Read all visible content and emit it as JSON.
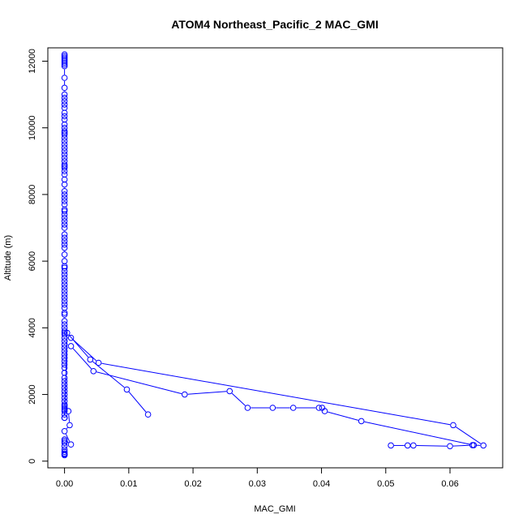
{
  "chart_data": {
    "type": "line",
    "title": "ATOM4 Northeast_Pacific_2 MAC_GMI",
    "xlabel": "MAC_GMI",
    "ylabel": "Altitude (m)",
    "xlim": [
      -0.0026,
      0.0682
    ],
    "ylim": [
      -200,
      12400
    ],
    "x_ticks": [
      0.0,
      0.01,
      0.02,
      0.03,
      0.04,
      0.05,
      0.06
    ],
    "x_tick_labels": [
      "0.00",
      "0.01",
      "0.02",
      "0.03",
      "0.04",
      "0.05",
      "0.06"
    ],
    "y_ticks": [
      0,
      2000,
      4000,
      6000,
      8000,
      10000,
      12000
    ],
    "y_tick_labels": [
      "0",
      "2000",
      "4000",
      "6000",
      "8000",
      "10000",
      "12000"
    ],
    "grid": false,
    "legend": "none",
    "color": "#0000ff",
    "marker": "open-circle",
    "series": [
      {
        "x": [
          0.0,
          0.0,
          0.0,
          0.0,
          0.0,
          0.0,
          0.0,
          0.0,
          0.0,
          0.0,
          0.0,
          0.0,
          0.0,
          0.0,
          0.0,
          0.0,
          0.0,
          0.0,
          0.0,
          0.0,
          0.0,
          0.0,
          0.0,
          0.0,
          0.0,
          0.0,
          0.0,
          0.0,
          0.0,
          0.0,
          0.0,
          0.0,
          0.0,
          0.0,
          0.0,
          0.0,
          0.0,
          0.0,
          0.0,
          0.0,
          0.0,
          0.0,
          0.0,
          0.0,
          0.0,
          0.0,
          0.0,
          0.0,
          0.0,
          0.0,
          0.0,
          0.0,
          0.0,
          0.0,
          0.0,
          0.0,
          0.0,
          0.0,
          0.0,
          0.0,
          0.0,
          0.0,
          0.0,
          0.0,
          0.0,
          0.0,
          0.0,
          0.0,
          0.0,
          0.0,
          0.0,
          0.0,
          0.0,
          0.0,
          0.0,
          0.0,
          0.0,
          0.0,
          0.0,
          0.0,
          0.0,
          0.0,
          0.0,
          0.0,
          0.0,
          0.0,
          0.0,
          0.0,
          0.0,
          0.0,
          0.0,
          0.0,
          0.0,
          0.0,
          0.0,
          0.0,
          0.0,
          0.0,
          0.0,
          0.0,
          0.0,
          0.0,
          0.0
        ],
        "y": [
          12200,
          12150,
          12100,
          12050,
          12000,
          11950,
          11900,
          11850,
          11500,
          11200,
          11000,
          10900,
          10800,
          10700,
          10600,
          10450,
          10350,
          10250,
          10100,
          10000,
          9900,
          9850,
          9800,
          9700,
          9600,
          9500,
          9400,
          9300,
          9200,
          9100,
          9000,
          8900,
          8850,
          8800,
          8700,
          8600,
          8450,
          8300,
          8100,
          8000,
          7900,
          7800,
          7700,
          7550,
          7500,
          7400,
          7300,
          7200,
          7100,
          7000,
          6800,
          6700,
          6600,
          6500,
          6400,
          6200,
          6000,
          5850,
          5800,
          5700,
          5600,
          5500,
          5400,
          5300,
          5200,
          5100,
          5000,
          4900,
          4800,
          4700,
          4600,
          4450,
          4400,
          4200,
          4100,
          4000,
          3900,
          3850,
          3800,
          3700,
          3600,
          3500,
          3400,
          3300,
          3200,
          3100,
          3000,
          2900,
          2800,
          2650,
          2500,
          2400,
          2300,
          2200,
          2100,
          2000,
          1900,
          1800,
          1700,
          1650,
          1600,
          1500,
          1400
        ]
      },
      {
        "x": [
          0.0,
          0.0004,
          0.004,
          0.0097,
          0.013
        ],
        "y": [
          1300,
          3850,
          3050,
          2150,
          1400
        ]
      },
      {
        "x": [
          0.001,
          0.0053,
          0.0605,
          0.0652,
          0.0635,
          0.06,
          0.0543,
          0.0534,
          0.0508
        ],
        "y": [
          3700,
          2950,
          1080,
          470,
          480,
          450,
          470,
          470,
          470
        ]
      },
      {
        "x": [
          0.001,
          0.0045,
          0.0187,
          0.0257,
          0.0285,
          0.0324,
          0.0356,
          0.0396,
          0.0401,
          0.0405,
          0.0462,
          0.0637
        ],
        "y": [
          3450,
          2700,
          2000,
          2100,
          1600,
          1600,
          1600,
          1600,
          1600,
          1500,
          1200,
          480
        ]
      },
      {
        "x": [
          0.0,
          0.0,
          0.0006,
          0.0008,
          0.0,
          0.001,
          0.0,
          0.0,
          0.0,
          0.0,
          0.0,
          0.0,
          0.0,
          0.0,
          0.0
        ],
        "y": [
          1300,
          1550,
          1500,
          1080,
          900,
          500,
          650,
          600,
          550,
          450,
          350,
          280,
          230,
          200,
          180
        ]
      }
    ]
  }
}
